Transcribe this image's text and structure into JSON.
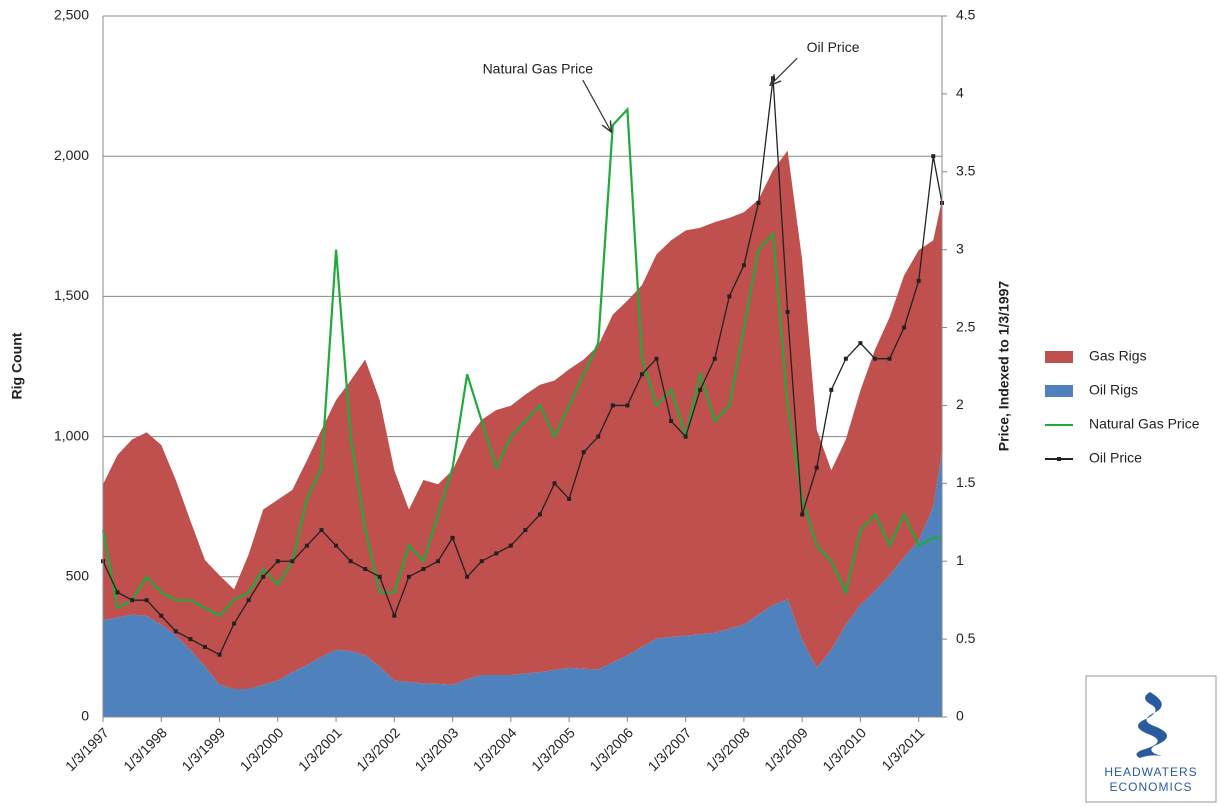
{
  "chart_data": {
    "type": "area",
    "stacked": true,
    "y_label": "Rig Count",
    "y2_label": "Price, Indexed to 1/3/1997",
    "x": [
      1997,
      1997.25,
      1997.5,
      1997.75,
      1998,
      1998.25,
      1998.5,
      1998.75,
      1999,
      1999.25,
      1999.5,
      1999.75,
      2000,
      2000.25,
      2000.5,
      2000.75,
      2001,
      2001.25,
      2001.5,
      2001.75,
      2002,
      2002.25,
      2002.5,
      2002.75,
      2003,
      2003.25,
      2003.5,
      2003.75,
      2004,
      2004.25,
      2004.5,
      2004.75,
      2005,
      2005.25,
      2005.5,
      2005.75,
      2006,
      2006.25,
      2006.5,
      2006.75,
      2007,
      2007.25,
      2007.5,
      2007.75,
      2008,
      2008.25,
      2008.5,
      2008.75,
      2009,
      2009.25,
      2009.5,
      2009.75,
      2010,
      2010.25,
      2010.5,
      2010.75,
      2011,
      2011.25,
      2011.4
    ],
    "xlim": [
      1997,
      2011.4
    ],
    "xticks": [
      {
        "value": 1997,
        "label": "1/3/1997"
      },
      {
        "value": 1998,
        "label": "1/3/1998"
      },
      {
        "value": 1999,
        "label": "1/3/1999"
      },
      {
        "value": 2000,
        "label": "1/3/2000"
      },
      {
        "value": 2001,
        "label": "1/3/2001"
      },
      {
        "value": 2002,
        "label": "1/3/2002"
      },
      {
        "value": 2003,
        "label": "1/3/2003"
      },
      {
        "value": 2004,
        "label": "1/3/2004"
      },
      {
        "value": 2005,
        "label": "1/3/2005"
      },
      {
        "value": 2006,
        "label": "1/3/2006"
      },
      {
        "value": 2007,
        "label": "1/3/2007"
      },
      {
        "value": 2008,
        "label": "1/3/2008"
      },
      {
        "value": 2009,
        "label": "1/3/2009"
      },
      {
        "value": 2010,
        "label": "1/3/2010"
      },
      {
        "value": 2011,
        "label": "1/3/2011"
      }
    ],
    "ylim": [
      0,
      2500
    ],
    "yticks": [
      0,
      500,
      {
        "value": 1000,
        "label": "1,000"
      },
      {
        "value": 1500,
        "label": "1,500"
      },
      {
        "value": 2000,
        "label": "2,000"
      },
      {
        "value": 2500,
        "label": "2,500"
      }
    ],
    "y2lim": [
      0,
      4.5
    ],
    "y2ticks": [
      0,
      0.5,
      1,
      1.5,
      2,
      2.5,
      3,
      3.5,
      4,
      4.5
    ],
    "grid": true,
    "legend": "right",
    "series": [
      {
        "name": "Gas Rigs",
        "type": "area",
        "color": "#c0504d",
        "values": [
          485,
          580,
          625,
          655,
          640,
          555,
          460,
          380,
          390,
          355,
          480,
          625,
          645,
          650,
          730,
          810,
          890,
          965,
          1055,
          950,
          750,
          615,
          725,
          712,
          765,
          855,
          910,
          945,
          960,
          995,
          1025,
          1032,
          1065,
          1103,
          1155,
          1240,
          1265,
          1290,
          1370,
          1415,
          1445,
          1450,
          1465,
          1465,
          1470,
          1480,
          1550,
          1600,
          1355,
          850,
          640,
          660,
          765,
          860,
          920,
          1005,
          1035,
          950,
          895
        ]
      },
      {
        "name": "Oil Rigs",
        "type": "area",
        "color": "#4f81bd",
        "values": [
          345,
          355,
          365,
          360,
          330,
          290,
          240,
          180,
          115,
          100,
          100,
          115,
          130,
          160,
          185,
          215,
          240,
          235,
          220,
          180,
          130,
          125,
          120,
          118,
          115,
          135,
          150,
          150,
          150,
          155,
          160,
          168,
          175,
          172,
          170,
          195,
          220,
          250,
          280,
          285,
          290,
          295,
          300,
          315,
          330,
          365,
          400,
          420,
          275,
          175,
          240,
          330,
          400,
          450,
          505,
          570,
          630,
          750,
          950
        ]
      },
      {
        "name": "Natural Gas Price",
        "type": "line",
        "axis": "y2",
        "color": "#1faa3c",
        "values": [
          1.2,
          0.7,
          0.75,
          0.9,
          0.8,
          0.75,
          0.75,
          0.7,
          0.65,
          0.75,
          0.8,
          0.95,
          0.85,
          1.0,
          1.4,
          1.6,
          3.0,
          1.8,
          1.2,
          0.8,
          0.8,
          1.1,
          1.0,
          1.3,
          1.6,
          2.2,
          1.9,
          1.6,
          1.8,
          1.9,
          2.0,
          1.8,
          2.0,
          2.2,
          2.4,
          3.8,
          3.9,
          2.3,
          2.0,
          2.1,
          1.8,
          2.2,
          1.9,
          2.0,
          2.5,
          3.0,
          3.1,
          2.0,
          1.4,
          1.1,
          1.0,
          0.8,
          1.2,
          1.3,
          1.1,
          1.3,
          1.1,
          1.15,
          1.15
        ]
      },
      {
        "name": "Oil Price",
        "type": "line",
        "axis": "y2",
        "color": "#222222",
        "markers": true,
        "values": [
          1.0,
          0.8,
          0.75,
          0.75,
          0.65,
          0.55,
          0.5,
          0.45,
          0.4,
          0.6,
          0.75,
          0.9,
          1.0,
          1.0,
          1.1,
          1.2,
          1.1,
          1.0,
          0.95,
          0.9,
          0.65,
          0.9,
          0.95,
          1.0,
          1.15,
          0.9,
          1.0,
          1.05,
          1.1,
          1.2,
          1.3,
          1.5,
          1.4,
          1.7,
          1.8,
          2.0,
          2.0,
          2.2,
          2.3,
          1.9,
          1.8,
          2.1,
          2.3,
          2.7,
          2.9,
          3.3,
          4.1,
          2.6,
          1.3,
          1.6,
          2.1,
          2.3,
          2.4,
          2.3,
          2.3,
          2.5,
          2.8,
          3.6,
          3.3
        ]
      }
    ],
    "annotations": [
      {
        "text": "Natural Gas Price",
        "x": 2005.75,
        "y": 3.8
      },
      {
        "text": "Oil Price",
        "x": 2008.5,
        "y": 4.1
      }
    ]
  },
  "logo": {
    "line1": "HEADWATERS",
    "line2": "ECONOMICS"
  }
}
